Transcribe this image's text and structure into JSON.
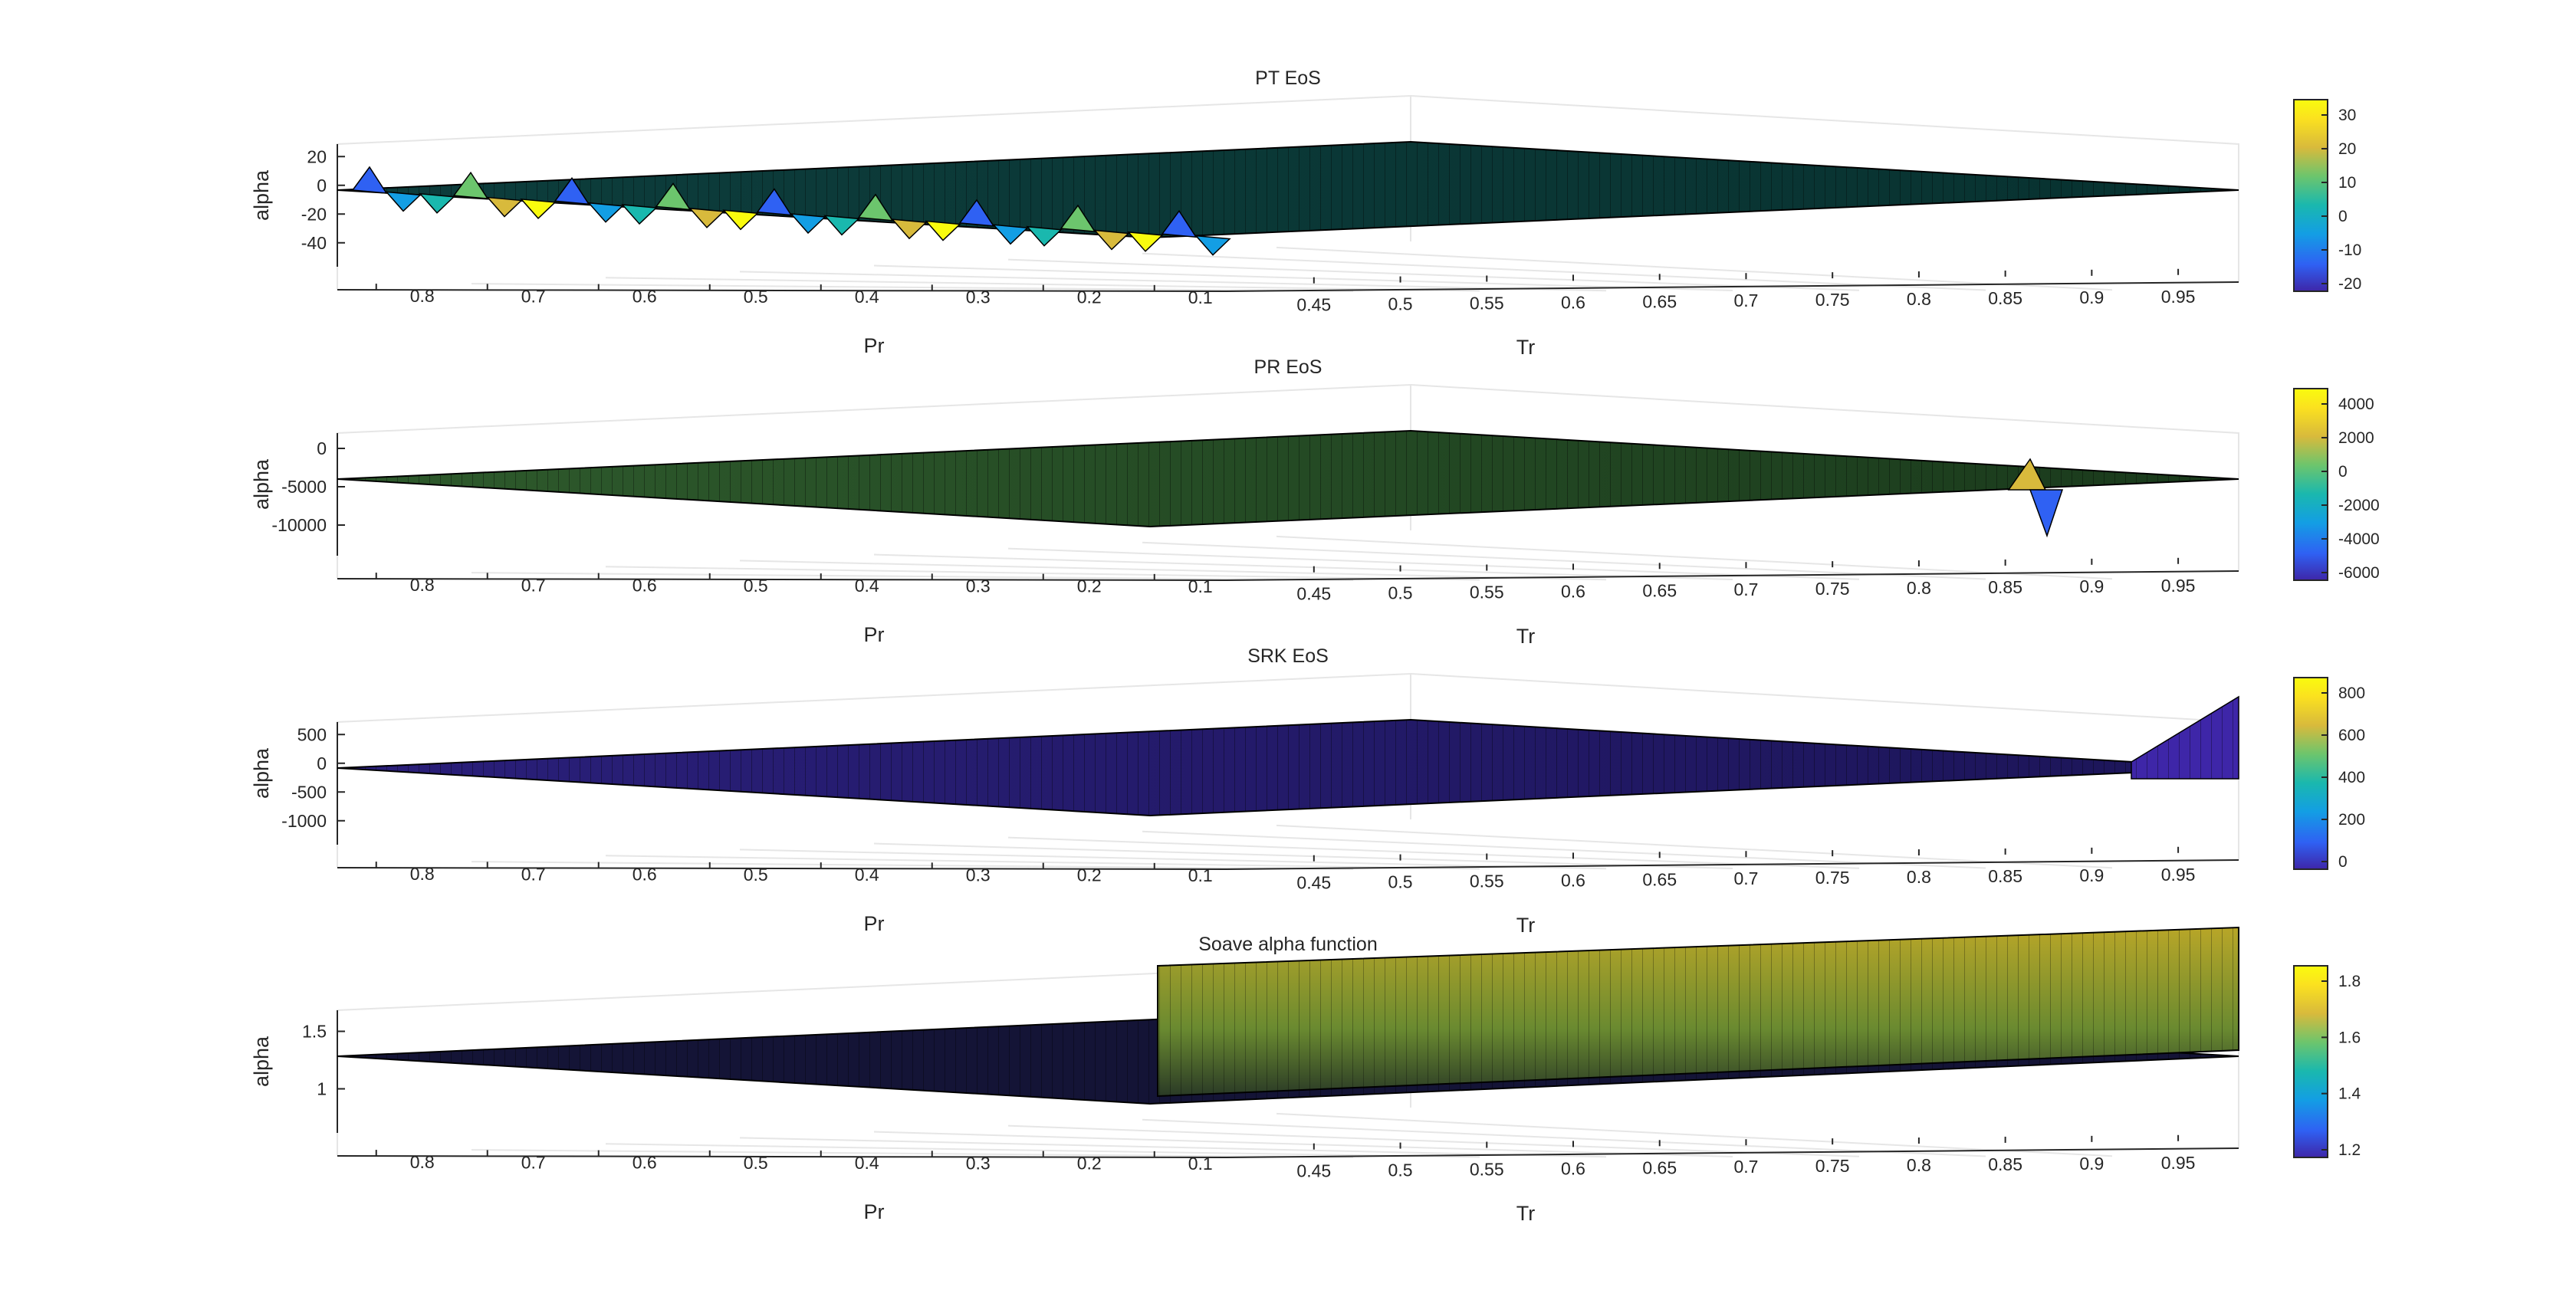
{
  "chart_data": [
    {
      "type": "surface",
      "title": "PT EoS",
      "xlabel": "Pr",
      "ylabel": "Tr",
      "zlabel": "alpha",
      "pr_ticks": [
        "0.8",
        "0.7",
        "0.6",
        "0.5",
        "0.4",
        "0.3",
        "0.2",
        "0.1"
      ],
      "tr_ticks": [
        "0.45",
        "0.5",
        "0.55",
        "0.6",
        "0.65",
        "0.7",
        "0.75",
        "0.8",
        "0.85",
        "0.9",
        "0.95"
      ],
      "z_ticks": [
        "20",
        "0",
        "-20",
        "-40"
      ],
      "zlim": [
        -50,
        30
      ],
      "colorbar_ticks": [
        "30",
        "20",
        "10",
        "0",
        "-10",
        "-20"
      ],
      "clim": [
        -25,
        37
      ],
      "surface_description_values": {
        "flat_level": 0,
        "spike_max": 30,
        "spike_min": -22
      },
      "colormap": [
        "#3e26a8",
        "#2f61f3",
        "#139ee4",
        "#1ab8ae",
        "#6cc56d",
        "#d8ba3c",
        "#fbe11f",
        "#f9fb0e"
      ]
    },
    {
      "type": "surface",
      "title": "PR EoS",
      "xlabel": "Pr",
      "ylabel": "Tr",
      "zlabel": "alpha",
      "pr_ticks": [
        "0.8",
        "0.7",
        "0.6",
        "0.5",
        "0.4",
        "0.3",
        "0.2",
        "0.1"
      ],
      "tr_ticks": [
        "0.45",
        "0.5",
        "0.55",
        "0.6",
        "0.65",
        "0.7",
        "0.75",
        "0.8",
        "0.85",
        "0.9",
        "0.95"
      ],
      "z_ticks": [
        "0",
        "-5000",
        "-10000"
      ],
      "zlim": [
        -10000,
        1500
      ],
      "colorbar_ticks": [
        "4000",
        "2000",
        "0",
        "-2000",
        "-4000",
        "-6000"
      ],
      "clim": [
        -6800,
        4700
      ],
      "surface_description_values": {
        "flat_level": 0,
        "spike_max": 4000,
        "spike_min": -6000
      },
      "colormap": [
        "#3e26a8",
        "#2f61f3",
        "#139ee4",
        "#1ab8ae",
        "#6cc56d",
        "#d8ba3c",
        "#fbe11f",
        "#f9fb0e"
      ]
    },
    {
      "type": "surface",
      "title": "SRK EoS",
      "xlabel": "Pr",
      "ylabel": "Tr",
      "zlabel": "alpha",
      "pr_ticks": [
        "0.8",
        "0.7",
        "0.6",
        "0.5",
        "0.4",
        "0.3",
        "0.2",
        "0.1"
      ],
      "tr_ticks": [
        "0.45",
        "0.5",
        "0.55",
        "0.6",
        "0.65",
        "0.7",
        "0.75",
        "0.8",
        "0.85",
        "0.9",
        "0.95"
      ],
      "z_ticks": [
        "500",
        "0",
        "-500",
        "-1000"
      ],
      "zlim": [
        -1000,
        900
      ],
      "colorbar_ticks": [
        "800",
        "600",
        "400",
        "200",
        "0"
      ],
      "clim": [
        -100,
        980
      ],
      "surface_description_values": {
        "flat_level": 0,
        "spike_max": 900
      },
      "colormap": [
        "#3e26a8",
        "#2f61f3",
        "#139ee4",
        "#1ab8ae",
        "#6cc56d",
        "#d8ba3c",
        "#fbe11f",
        "#f9fb0e"
      ]
    },
    {
      "type": "surface",
      "title": "Soave alpha function",
      "xlabel": "Pr",
      "ylabel": "Tr",
      "zlabel": "alpha",
      "pr_ticks": [
        "0.8",
        "0.7",
        "0.6",
        "0.5",
        "0.4",
        "0.3",
        "0.2",
        "0.1"
      ],
      "tr_ticks": [
        "0.45",
        "0.5",
        "0.55",
        "0.6",
        "0.65",
        "0.7",
        "0.75",
        "0.8",
        "0.85",
        "0.9",
        "0.95"
      ],
      "z_ticks": [
        "1.5",
        "1"
      ],
      "zlim": [
        1,
        1.9
      ],
      "colorbar_ticks": [
        "1.8",
        "1.6",
        "1.4",
        "1.2"
      ],
      "clim": [
        1.05,
        1.92
      ],
      "surface_description_values": {
        "flat_level": 1,
        "plateau_level": 1.8
      },
      "colormap": [
        "#3e26a8",
        "#2f61f3",
        "#139ee4",
        "#1ab8ae",
        "#6cc56d",
        "#d8ba3c",
        "#fbe11f",
        "#f9fb0e"
      ]
    }
  ]
}
